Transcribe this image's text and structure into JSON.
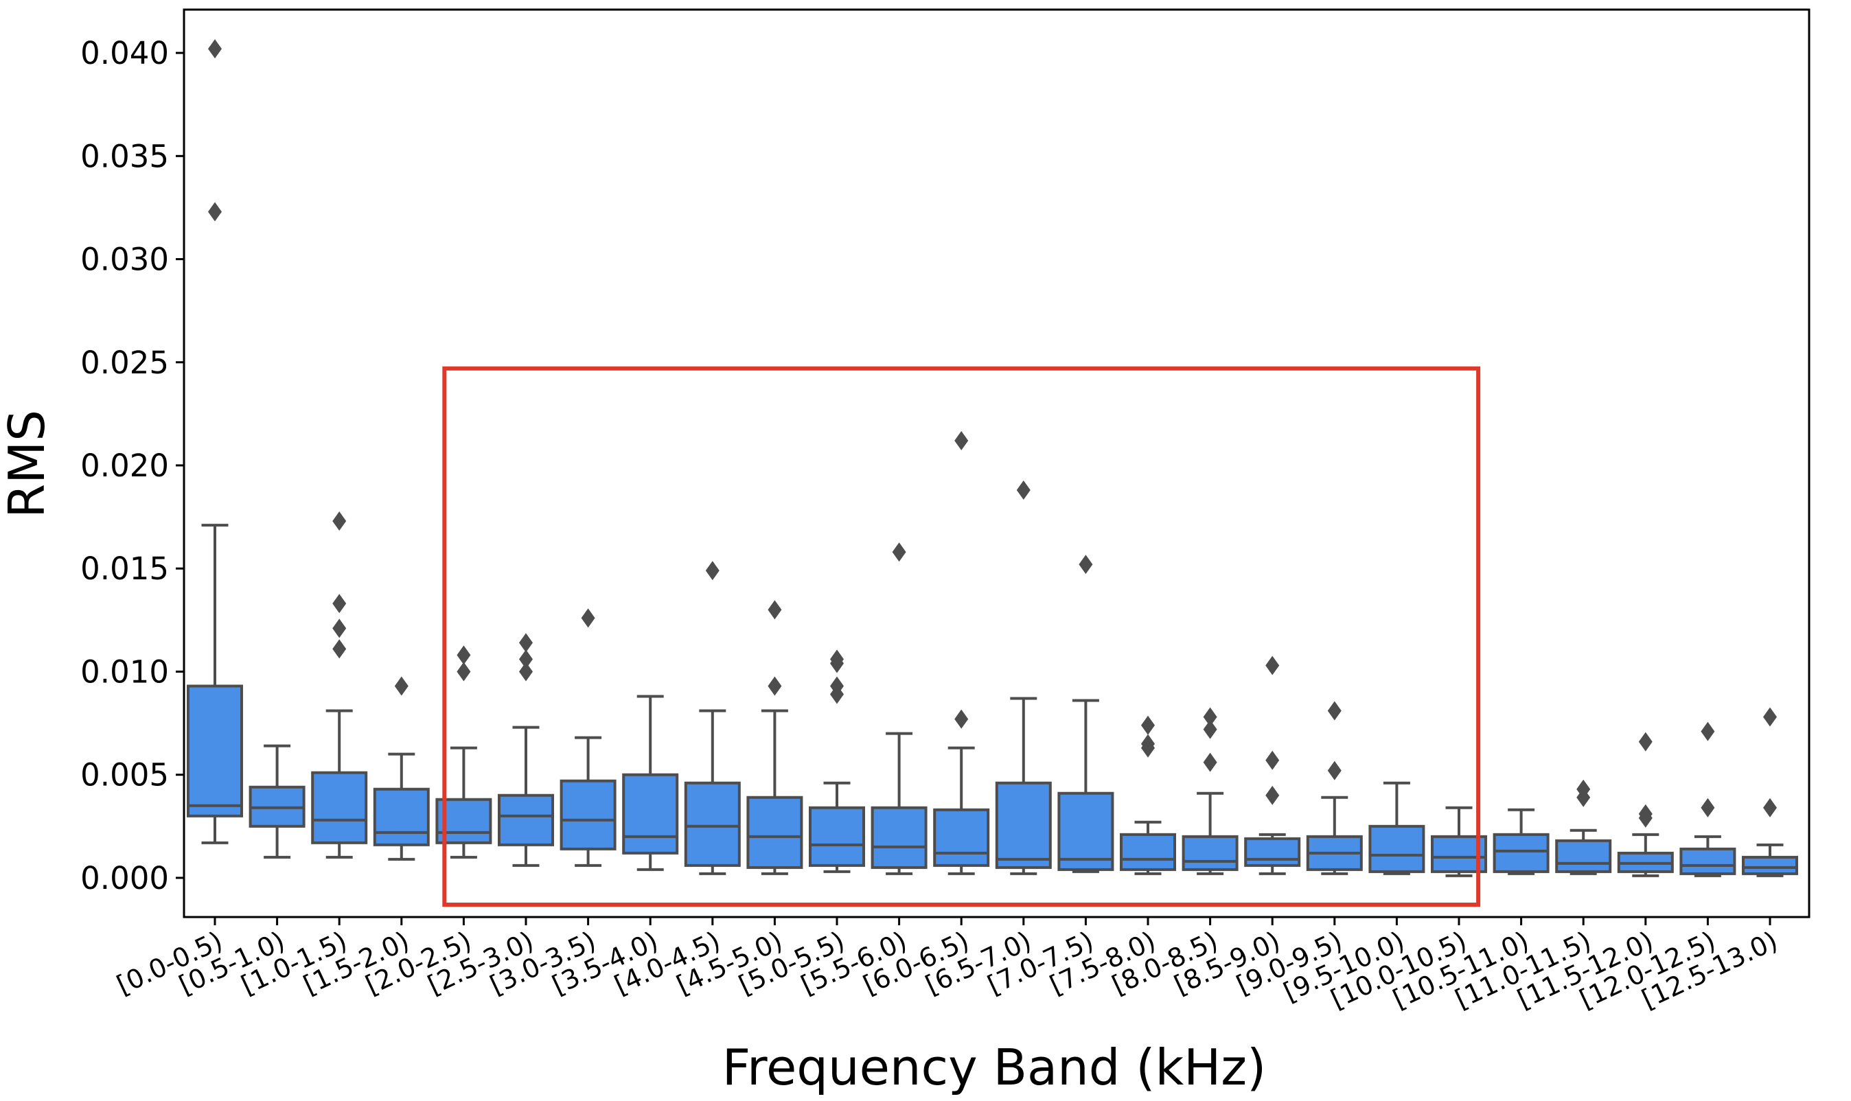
{
  "chart_data": {
    "type": "boxplot",
    "xlabel": "Frequency Band (kHz)",
    "ylabel": "RMS",
    "ylim": [
      -0.0019,
      0.0421
    ],
    "yticks": [
      "0.000",
      "0.005",
      "0.010",
      "0.015",
      "0.020",
      "0.025",
      "0.030",
      "0.035",
      "0.040"
    ],
    "grid": false,
    "colors": {
      "box_fill": "#4a8fe7",
      "box_line": "#4d4d4d",
      "highlight": "#e0392c"
    },
    "highlight": {
      "from_category": "[2.0-2.5)",
      "to_category": "[10.0-10.5)",
      "y_top": 0.0247,
      "y_bottom": -0.0013
    },
    "categories": [
      "[0.0-0.5)",
      "[0.5-1.0)",
      "[1.0-1.5)",
      "[1.5-2.0)",
      "[2.0-2.5)",
      "[2.5-3.0)",
      "[3.0-3.5)",
      "[3.5-4.0)",
      "[4.0-4.5)",
      "[4.5-5.0)",
      "[5.0-5.5)",
      "[5.5-6.0)",
      "[6.0-6.5)",
      "[6.5-7.0)",
      "[7.0-7.5)",
      "[7.5-8.0)",
      "[8.0-8.5)",
      "[8.5-9.0)",
      "[9.0-9.5)",
      "[9.5-10.0)",
      "[10.0-10.5)",
      "[10.5-11.0)",
      "[11.0-11.5)",
      "[11.5-12.0)",
      "[12.0-12.5)",
      "[12.5-13.0)"
    ],
    "boxes": [
      {
        "whisker_low": 0.0017,
        "q1": 0.003,
        "median": 0.0035,
        "q3": 0.0093,
        "whisker_high": 0.0171,
        "outliers": [
          0.0402,
          0.0323
        ]
      },
      {
        "whisker_low": 0.001,
        "q1": 0.0025,
        "median": 0.0034,
        "q3": 0.0044,
        "whisker_high": 0.0064,
        "outliers": []
      },
      {
        "whisker_low": 0.001,
        "q1": 0.0017,
        "median": 0.0028,
        "q3": 0.0051,
        "whisker_high": 0.0081,
        "outliers": [
          0.0173,
          0.0133,
          0.0121,
          0.0111
        ]
      },
      {
        "whisker_low": 0.0009,
        "q1": 0.0016,
        "median": 0.0022,
        "q3": 0.0043,
        "whisker_high": 0.006,
        "outliers": [
          0.0093
        ]
      },
      {
        "whisker_low": 0.001,
        "q1": 0.0017,
        "median": 0.0022,
        "q3": 0.0038,
        "whisker_high": 0.0063,
        "outliers": [
          0.0108,
          0.01
        ]
      },
      {
        "whisker_low": 0.0006,
        "q1": 0.0016,
        "median": 0.003,
        "q3": 0.004,
        "whisker_high": 0.0073,
        "outliers": [
          0.0114,
          0.0106,
          0.01
        ]
      },
      {
        "whisker_low": 0.0006,
        "q1": 0.0014,
        "median": 0.0028,
        "q3": 0.0047,
        "whisker_high": 0.0068,
        "outliers": [
          0.0126
        ]
      },
      {
        "whisker_low": 0.0004,
        "q1": 0.0012,
        "median": 0.002,
        "q3": 0.005,
        "whisker_high": 0.0088,
        "outliers": []
      },
      {
        "whisker_low": 0.0002,
        "q1": 0.0006,
        "median": 0.0025,
        "q3": 0.0046,
        "whisker_high": 0.0081,
        "outliers": [
          0.0149
        ]
      },
      {
        "whisker_low": 0.0002,
        "q1": 0.0005,
        "median": 0.002,
        "q3": 0.0039,
        "whisker_high": 0.0081,
        "outliers": [
          0.013,
          0.0093
        ]
      },
      {
        "whisker_low": 0.0003,
        "q1": 0.0006,
        "median": 0.0016,
        "q3": 0.0034,
        "whisker_high": 0.0046,
        "outliers": [
          0.0106,
          0.0104,
          0.0093,
          0.0089
        ]
      },
      {
        "whisker_low": 0.0002,
        "q1": 0.0005,
        "median": 0.0015,
        "q3": 0.0034,
        "whisker_high": 0.007,
        "outliers": [
          0.0158
        ]
      },
      {
        "whisker_low": 0.0002,
        "q1": 0.0006,
        "median": 0.0012,
        "q3": 0.0033,
        "whisker_high": 0.0063,
        "outliers": [
          0.0212,
          0.0077
        ]
      },
      {
        "whisker_low": 0.0002,
        "q1": 0.0005,
        "median": 0.0009,
        "q3": 0.0046,
        "whisker_high": 0.0087,
        "outliers": [
          0.0188
        ]
      },
      {
        "whisker_low": 0.0003,
        "q1": 0.0004,
        "median": 0.0009,
        "q3": 0.0041,
        "whisker_high": 0.0086,
        "outliers": [
          0.0152
        ]
      },
      {
        "whisker_low": 0.0002,
        "q1": 0.0004,
        "median": 0.0009,
        "q3": 0.0021,
        "whisker_high": 0.0027,
        "outliers": [
          0.0074,
          0.0065,
          0.0063
        ]
      },
      {
        "whisker_low": 0.0002,
        "q1": 0.0004,
        "median": 0.0008,
        "q3": 0.002,
        "whisker_high": 0.0041,
        "outliers": [
          0.0078,
          0.0072,
          0.0056
        ]
      },
      {
        "whisker_low": 0.0002,
        "q1": 0.0006,
        "median": 0.0009,
        "q3": 0.0019,
        "whisker_high": 0.0021,
        "outliers": [
          0.0103,
          0.0057,
          0.004
        ]
      },
      {
        "whisker_low": 0.0002,
        "q1": 0.0004,
        "median": 0.0012,
        "q3": 0.002,
        "whisker_high": 0.0039,
        "outliers": [
          0.0081,
          0.0052
        ]
      },
      {
        "whisker_low": 0.0002,
        "q1": 0.0003,
        "median": 0.0011,
        "q3": 0.0025,
        "whisker_high": 0.0046,
        "outliers": []
      },
      {
        "whisker_low": 0.0001,
        "q1": 0.0003,
        "median": 0.001,
        "q3": 0.002,
        "whisker_high": 0.0034,
        "outliers": []
      },
      {
        "whisker_low": 0.0002,
        "q1": 0.0003,
        "median": 0.0013,
        "q3": 0.0021,
        "whisker_high": 0.0033,
        "outliers": []
      },
      {
        "whisker_low": 0.0002,
        "q1": 0.0003,
        "median": 0.0007,
        "q3": 0.0018,
        "whisker_high": 0.0023,
        "outliers": [
          0.0043,
          0.0039
        ]
      },
      {
        "whisker_low": 0.0001,
        "q1": 0.0003,
        "median": 0.0007,
        "q3": 0.0012,
        "whisker_high": 0.0021,
        "outliers": [
          0.0066,
          0.0031,
          0.0029
        ]
      },
      {
        "whisker_low": 0.0001,
        "q1": 0.0002,
        "median": 0.0006,
        "q3": 0.0014,
        "whisker_high": 0.002,
        "outliers": [
          0.0071,
          0.0034
        ]
      },
      {
        "whisker_low": 0.0001,
        "q1": 0.0002,
        "median": 0.0005,
        "q3": 0.001,
        "whisker_high": 0.0016,
        "outliers": [
          0.0078,
          0.0034
        ]
      }
    ]
  }
}
